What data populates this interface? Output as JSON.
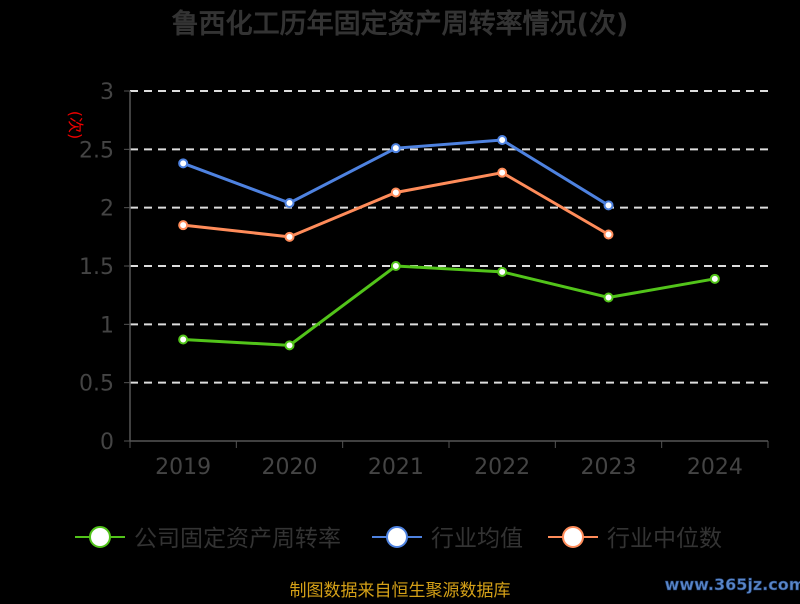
{
  "chart_data": {
    "type": "line",
    "title": "鲁西化工历年固定资产周转率情况(次)",
    "ylabel": "(次)",
    "xlabel": "",
    "categories": [
      "2019",
      "2020",
      "2021",
      "2022",
      "2023",
      "2024"
    ],
    "ylim": [
      0,
      3
    ],
    "yticks": [
      "0",
      "0.5",
      "1",
      "1.5",
      "2",
      "2.5",
      "3"
    ],
    "grid": true,
    "legend_position": "bottom",
    "series": [
      {
        "name": "公司固定资产周转率",
        "color": "#52c41a",
        "values": [
          0.87,
          0.82,
          1.5,
          1.45,
          1.23,
          1.39
        ]
      },
      {
        "name": "行业均值",
        "color": "#4e82e0",
        "values": [
          2.38,
          2.04,
          2.51,
          2.58,
          2.02,
          null
        ]
      },
      {
        "name": "行业中位数",
        "color": "#ff8c5a",
        "values": [
          1.85,
          1.75,
          2.13,
          2.3,
          1.77,
          null
        ]
      }
    ]
  },
  "footer": {
    "source": "制图数据来自恒生聚源数据库",
    "watermark": "www.365jz.com"
  }
}
